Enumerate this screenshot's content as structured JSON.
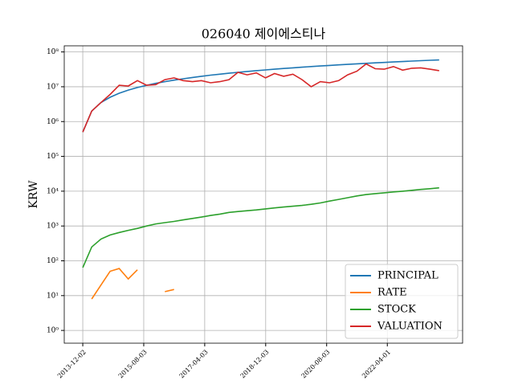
{
  "chart_data": {
    "type": "line",
    "title": "026040 제이에스티나",
    "y_label": "KRW",
    "x": [
      "2013-12-02",
      "2014-03-01",
      "2014-06-01",
      "2014-09-01",
      "2014-12-01",
      "2015-03-01",
      "2015-06-01",
      "2015-09-01",
      "2015-12-01",
      "2016-03-01",
      "2016-06-01",
      "2016-09-01",
      "2016-12-01",
      "2017-03-01",
      "2017-06-01",
      "2017-09-01",
      "2017-12-01",
      "2018-03-01",
      "2018-06-01",
      "2018-09-01",
      "2018-12-01",
      "2019-03-01",
      "2019-06-01",
      "2019-09-01",
      "2019-12-01",
      "2020-03-01",
      "2020-06-01",
      "2020-09-01",
      "2020-12-01",
      "2021-03-01",
      "2021-06-01",
      "2021-09-01",
      "2021-12-01",
      "2022-03-01",
      "2022-06-01",
      "2022-09-01",
      "2022-12-01",
      "2023-03-01",
      "2023-06-01",
      "2023-09-01"
    ],
    "series": [
      {
        "name": "PRINCIPAL",
        "color": "#1f77b4",
        "values": [
          500000,
          2000000,
          3500000,
          5000000,
          6500000,
          8000000,
          9500000,
          11000000,
          12500000,
          14000000,
          15500000,
          17000000,
          18500000,
          20000000,
          21500000,
          23000000,
          24500000,
          26000000,
          27500000,
          29000000,
          30500000,
          32000000,
          33500000,
          35000000,
          36500000,
          38000000,
          39500000,
          41000000,
          42500000,
          44000000,
          45500000,
          47000000,
          48500000,
          50000000,
          51500000,
          53000000,
          54500000,
          56000000,
          57500000,
          59000000
        ]
      },
      {
        "name": "RATE",
        "color": "#ff7f0e",
        "values": [
          null,
          8,
          20,
          50,
          60,
          30,
          55,
          null,
          null,
          13,
          15,
          null,
          null,
          null,
          null,
          null,
          null,
          null,
          null,
          null,
          null,
          null,
          null,
          null,
          null,
          null,
          null,
          null,
          null,
          null,
          null,
          null,
          null,
          null,
          null,
          null,
          null,
          null,
          null,
          null
        ]
      },
      {
        "name": "STOCK",
        "color": "#2ca02c",
        "values": [
          64,
          250,
          420,
          550,
          650,
          750,
          850,
          1000,
          1150,
          1250,
          1350,
          1500,
          1650,
          1800,
          2000,
          2200,
          2450,
          2600,
          2750,
          2900,
          3100,
          3300,
          3500,
          3700,
          3900,
          4200,
          4600,
          5200,
          5800,
          6500,
          7300,
          8000,
          8500,
          9000,
          9500,
          10000,
          10600,
          11200,
          11800,
          12500
        ]
      },
      {
        "name": "VALUATION",
        "color": "#d62728",
        "values": [
          500000,
          2000000,
          3500000,
          6000000,
          11000000,
          10500000,
          15000000,
          11000000,
          11500000,
          16000000,
          18000000,
          15000000,
          14000000,
          15000000,
          13000000,
          14000000,
          16000000,
          26000000,
          22000000,
          25000000,
          18000000,
          24000000,
          20000000,
          23000000,
          16000000,
          10000000,
          14000000,
          13000000,
          15000000,
          22000000,
          28000000,
          45000000,
          33000000,
          32000000,
          38000000,
          30000000,
          34000000,
          35000000,
          32000000,
          29000000
        ]
      }
    ],
    "xlim": [
      "2013-05-31",
      "2024-04-22"
    ],
    "xticks": [
      "2013-12-02",
      "2015-08-03",
      "2017-04-03",
      "2018-12-03",
      "2020-08-03",
      "2022-04-01"
    ],
    "ylim": [
      0.43,
      150000000
    ],
    "log_y": true,
    "yticks": [
      {
        "value": 1,
        "label": "10⁰"
      },
      {
        "value": 10,
        "label": "10¹"
      },
      {
        "value": 100,
        "label": "10²"
      },
      {
        "value": 1000,
        "label": "10³"
      },
      {
        "value": 10000,
        "label": "10⁴"
      },
      {
        "value": 100000,
        "label": "10⁵"
      },
      {
        "value": 1000000,
        "label": "10⁶"
      },
      {
        "value": 10000000,
        "label": "10⁷"
      },
      {
        "value": 100000000,
        "label": "10⁸"
      }
    ],
    "grid": true,
    "legend": "lower right"
  }
}
